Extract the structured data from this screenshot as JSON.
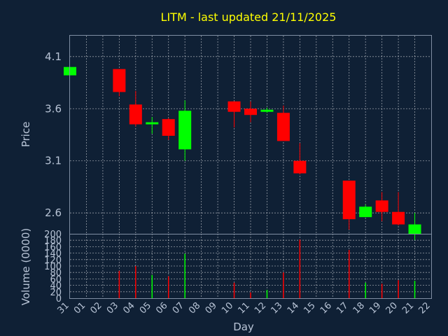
{
  "chart_data": {
    "type": "candlestick",
    "title": "LITM - last updated 21/11/2025",
    "xlabel": "Day",
    "ylabel": "Price",
    "volume_label": "Volume (0000)",
    "ylim": [
      2.4,
      4.3
    ],
    "volume_ylim": [
      0,
      200
    ],
    "y_ticks": [
      "2.6",
      "3.1",
      "3.6",
      "4.1"
    ],
    "volume_ticks": [
      "0",
      "20",
      "40",
      "60",
      "80",
      "100",
      "120",
      "140",
      "160",
      "180",
      "200"
    ],
    "x_ticks": [
      "31",
      "01",
      "02",
      "03",
      "04",
      "05",
      "06",
      "07",
      "08",
      "09",
      "10",
      "11",
      "12",
      "13",
      "14",
      "15",
      "16",
      "17",
      "18",
      "19",
      "20",
      "21",
      "22"
    ],
    "grid": true,
    "colors": {
      "up": "#00ff00",
      "down": "#ff0000",
      "background": "#0f2035",
      "title": "#ffff00"
    },
    "candles": [
      {
        "day": "31",
        "open": 3.92,
        "high": 4.0,
        "low": 3.92,
        "close": 4.0,
        "volume": 0
      },
      {
        "day": "03",
        "open": 3.98,
        "high": 3.98,
        "low": 3.72,
        "close": 3.76,
        "volume": 85
      },
      {
        "day": "04",
        "open": 3.64,
        "high": 3.77,
        "low": 3.43,
        "close": 3.45,
        "volume": 100
      },
      {
        "day": "05",
        "open": 3.45,
        "high": 3.52,
        "low": 3.36,
        "close": 3.47,
        "volume": 72
      },
      {
        "day": "06",
        "open": 3.5,
        "high": 3.51,
        "low": 3.3,
        "close": 3.34,
        "volume": 68
      },
      {
        "day": "07",
        "open": 3.21,
        "high": 3.68,
        "low": 3.1,
        "close": 3.58,
        "volume": 138
      },
      {
        "day": "10",
        "open": 3.67,
        "high": 3.67,
        "low": 3.42,
        "close": 3.57,
        "volume": 48
      },
      {
        "day": "11",
        "open": 3.6,
        "high": 3.67,
        "low": 3.47,
        "close": 3.54,
        "volume": 18
      },
      {
        "day": "12",
        "open": 3.57,
        "high": 3.61,
        "low": 3.56,
        "close": 3.59,
        "volume": 26
      },
      {
        "day": "13",
        "open": 3.56,
        "high": 3.63,
        "low": 3.29,
        "close": 3.29,
        "volume": 80
      },
      {
        "day": "14",
        "open": 3.1,
        "high": 3.27,
        "low": 2.97,
        "close": 2.98,
        "volume": 182
      },
      {
        "day": "17",
        "open": 2.91,
        "high": 2.91,
        "low": 2.44,
        "close": 2.54,
        "volume": 150
      },
      {
        "day": "18",
        "open": 2.56,
        "high": 2.68,
        "low": 2.56,
        "close": 2.66,
        "volume": 48
      },
      {
        "day": "19",
        "open": 2.72,
        "high": 2.8,
        "low": 2.52,
        "close": 2.61,
        "volume": 45
      },
      {
        "day": "20",
        "open": 2.61,
        "high": 2.8,
        "low": 2.48,
        "close": 2.49,
        "volume": 56
      },
      {
        "day": "21",
        "open": 2.4,
        "high": 2.6,
        "low": 2.34,
        "close": 2.49,
        "volume": 54
      }
    ]
  }
}
